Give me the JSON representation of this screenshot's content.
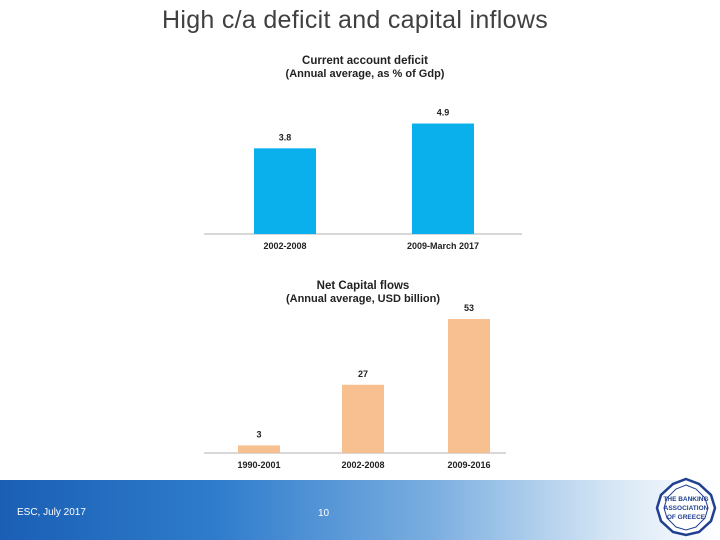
{
  "slide": {
    "title": "High c/a deficit and capital inflows",
    "footer_left": "ESC, July 2017",
    "page_number": "10",
    "logo_text": [
      "THE BANKING",
      "ASSOCIATION",
      "OF GREECE"
    ]
  },
  "colors": {
    "bar_top": "#0ab0ec",
    "bar_bottom": "#f8bf90",
    "axis": "#b0b0b0",
    "label": "#222222",
    "title": "#404040",
    "footer": "#1a5fb4",
    "logo": "#1f3f8f"
  },
  "chart_data": [
    {
      "type": "bar",
      "title": "Current account deficit",
      "subtitle": "(Annual average, as % of Gdp)",
      "categories": [
        "2002-2008",
        "2009-March 2017"
      ],
      "values": [
        3.8,
        4.9
      ],
      "value_labels": [
        "3.8",
        "4.9"
      ],
      "ylim": [
        0,
        5.5
      ],
      "grid": false
    },
    {
      "type": "bar",
      "title": "Net Capital flows",
      "subtitle": "(Annual average, USD billion)",
      "categories": [
        "1990-2001",
        "2002-2008",
        "2009-2016"
      ],
      "values": [
        3,
        27,
        53
      ],
      "value_labels": [
        "3",
        "27",
        "53"
      ],
      "ylim": [
        0,
        55
      ],
      "grid": false
    }
  ]
}
